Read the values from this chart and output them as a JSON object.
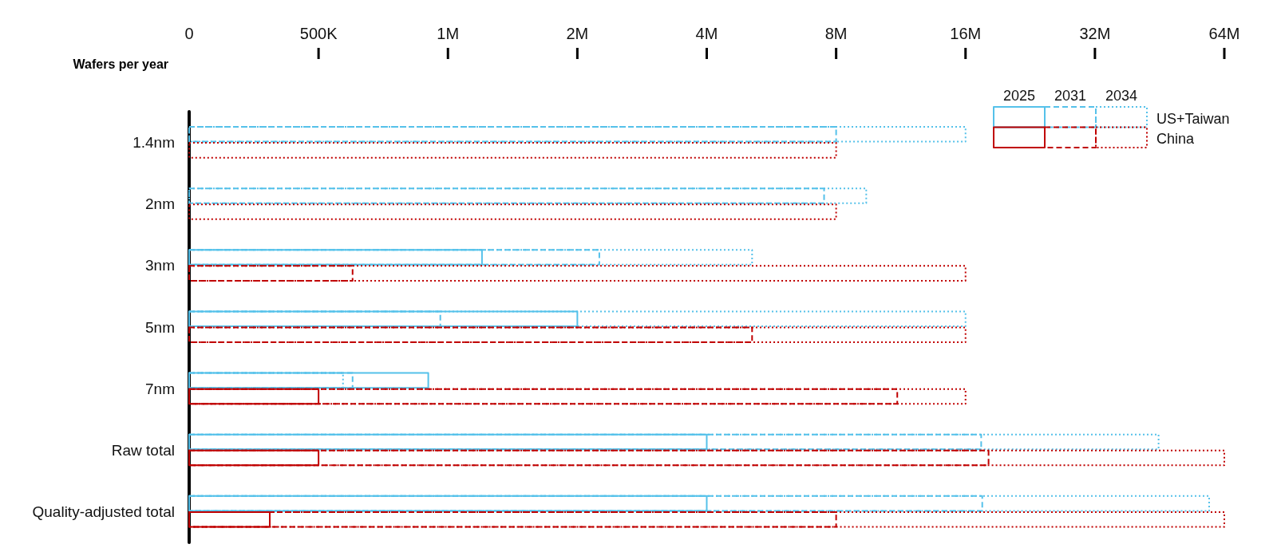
{
  "chart_data": {
    "type": "bar",
    "orientation": "horizontal",
    "log": "x",
    "xlabel": "Wafers per year",
    "categories": [
      "1.4nm",
      "2nm",
      "3nm",
      "5nm",
      "7nm",
      "Raw total",
      "Quality-adjusted total"
    ],
    "xlim": [
      0,
      64000000
    ],
    "xticks": [
      0,
      {
        "value": 500000,
        "label": "500K"
      },
      {
        "value": 1000000,
        "label": "1M"
      },
      {
        "value": 2000000,
        "label": "2M"
      },
      {
        "value": 4000000,
        "label": "4M"
      },
      {
        "value": 8000000,
        "label": "8M"
      },
      {
        "value": 16000000,
        "label": "16M"
      },
      {
        "value": 32000000,
        "label": "32M"
      },
      {
        "value": 64000000,
        "label": "64M"
      }
    ],
    "series": [
      {
        "name": "US+Taiwan",
        "color": "#55c1ea",
        "line_style": "solid",
        "values": [
          null,
          null,
          1200000,
          2000000,
          900000,
          4000000,
          4000000
        ]
      },
      {
        "color": "#55c1ea",
        "line_style": "dashed",
        "values": [
          8000000,
          7500000,
          2250000,
          960000,
          600000,
          17400000,
          17500000
        ]
      },
      {
        "color": "#55c1ea",
        "line_style": "dotted",
        "values": [
          16000000,
          9400000,
          5100000,
          16000000,
          570000,
          45000000,
          59000000
        ]
      },
      {
        "name": "China",
        "color": "#c00000",
        "line_style": "solid",
        "values": [
          null,
          null,
          null,
          null,
          500000,
          500000,
          385000
        ]
      },
      {
        "color": "#c00000",
        "line_style": "dashed",
        "values": [
          null,
          null,
          600000,
          5100000,
          11100000,
          18100000,
          8000000
        ]
      },
      {
        "color": "#c00000",
        "line_style": "dotted",
        "values": [
          8000000,
          8000000,
          16000000,
          16000000,
          16000000,
          64000000,
          64000000
        ]
      }
    ],
    "legend": "top right",
    "annotations": [
      "2025",
      "2031",
      "2034"
    ]
  }
}
